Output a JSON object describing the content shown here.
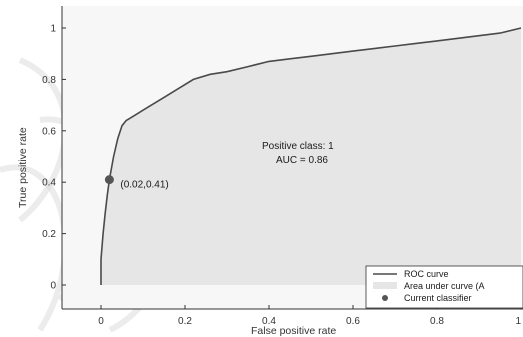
{
  "chart_data": {
    "type": "area",
    "xlabel": "False positive rate",
    "ylabel": "True positive rate",
    "xlim": [
      -0.1,
      1.0
    ],
    "ylim": [
      -0.1,
      1.06
    ],
    "x_ticks": [
      0,
      0.2,
      0.4,
      0.6,
      0.8,
      1
    ],
    "y_ticks": [
      0,
      0.2,
      0.4,
      0.6,
      0.8,
      1
    ],
    "x_tick_labels": [
      "0",
      "0.2",
      "0.4",
      "0.6",
      "0.8",
      "1"
    ],
    "y_tick_labels": [
      "0",
      "0.2",
      "0.4",
      "0.6",
      "0.8",
      "1"
    ],
    "grid": false,
    "series": [
      {
        "name": "ROC curve",
        "x": [
          0,
          0.0,
          0.005,
          0.01,
          0.015,
          0.02,
          0.03,
          0.04,
          0.05,
          0.06,
          0.08,
          0.1,
          0.12,
          0.15,
          0.18,
          0.22,
          0.26,
          0.3,
          0.35,
          0.4,
          0.45,
          0.5,
          0.55,
          0.6,
          0.65,
          0.7,
          0.75,
          0.8,
          0.85,
          0.9,
          0.95,
          1.0
        ],
        "y": [
          0,
          0.1,
          0.2,
          0.28,
          0.35,
          0.41,
          0.5,
          0.57,
          0.62,
          0.64,
          0.66,
          0.68,
          0.7,
          0.73,
          0.76,
          0.8,
          0.82,
          0.83,
          0.85,
          0.87,
          0.88,
          0.89,
          0.9,
          0.91,
          0.92,
          0.93,
          0.94,
          0.95,
          0.96,
          0.97,
          0.98,
          1.0
        ]
      }
    ],
    "current_classifier": {
      "x": 0.02,
      "y": 0.41,
      "label": "(0.02,0.41)"
    },
    "annotations": [
      "Positive class: 1",
      "AUC = 0.86"
    ],
    "legend": {
      "placement": "bottom-right",
      "entries": [
        "ROC curve",
        "Area under curve (A",
        "Current classifier"
      ]
    },
    "colors": {
      "curve": "#4a4a4a",
      "area": "#e6e6e6",
      "marker": "#555555",
      "axis": "#333333"
    }
  }
}
